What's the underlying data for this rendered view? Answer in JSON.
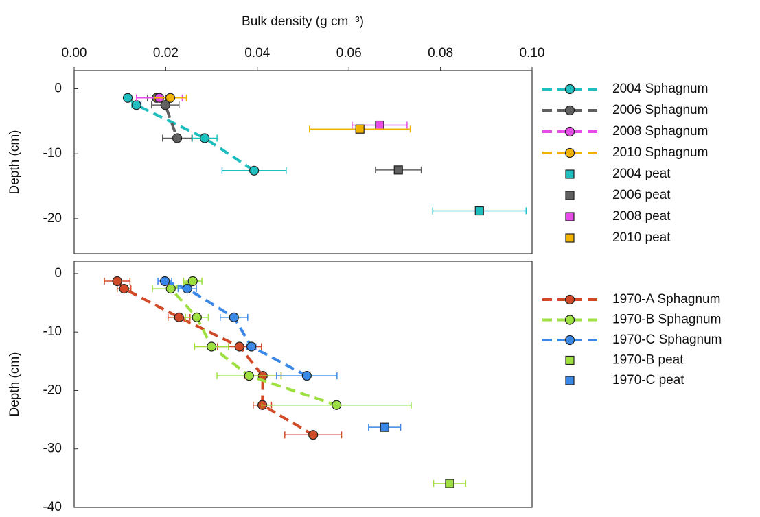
{
  "chart_data": [
    {
      "type": "scatter",
      "xlabel": "Bulk density (g cm⁻³)",
      "ylabel": "Depth (cm)",
      "xlim": [
        0,
        0.1
      ],
      "xticks": [
        {
          "value": 0,
          "label": "0.00"
        },
        {
          "value": 0.02,
          "label": "0.02"
        },
        {
          "value": 0.04,
          "label": "0.04"
        },
        {
          "value": 0.06,
          "label": "0.06"
        },
        {
          "value": 0.08,
          "label": "0.08"
        },
        {
          "value": 0.1,
          "label": "0.10"
        }
      ],
      "ylim": [
        -25.4,
        2.8
      ],
      "yticks": [
        0,
        -10,
        -20
      ],
      "series": [
        {
          "name": "2004 Sphagnum",
          "color": "#1fbfbf",
          "marker": "circle",
          "line": "dashed",
          "x": [
            0.0117,
            0.0136,
            0.0285,
            0.0393
          ],
          "y": [
            -1.4,
            -2.5,
            -7.6,
            -12.6
          ],
          "xerr": [
            0.0008,
            0.001,
            0.0027,
            0.007
          ]
        },
        {
          "name": "2006 Sphagnum",
          "color": "#606060",
          "marker": "circle",
          "line": "dashed",
          "x": [
            0.018,
            0.0199,
            0.0225
          ],
          "y": [
            -1.4,
            -2.5,
            -7.6
          ],
          "xerr": [
            0.002,
            0.003,
            0.0032
          ]
        },
        {
          "name": "2008 Sphagnum",
          "color": "#e64ce6",
          "marker": "circle",
          "line": "dashed",
          "x": [
            0.0186
          ],
          "y": [
            -1.4
          ],
          "xerr": [
            0.005
          ]
        },
        {
          "name": "2010 Sphagnum",
          "color": "#f0b400",
          "marker": "circle",
          "line": "dashed",
          "x": [
            0.021
          ],
          "y": [
            -1.4
          ],
          "xerr": [
            0.0035
          ]
        },
        {
          "name": "2004 peat",
          "color": "#1fbfbf",
          "marker": "square",
          "x": [
            0.0885
          ],
          "y": [
            -18.8
          ],
          "xerr": [
            0.0102
          ]
        },
        {
          "name": "2006 peat",
          "color": "#606060",
          "marker": "square",
          "x": [
            0.0708
          ],
          "y": [
            -12.5
          ],
          "xerr": [
            0.005
          ]
        },
        {
          "name": "2008 peat",
          "color": "#e64ce6",
          "marker": "square",
          "x": [
            0.0667
          ],
          "y": [
            -5.6
          ],
          "xerr": [
            0.006
          ]
        },
        {
          "name": "2010 peat",
          "color": "#f0b400",
          "marker": "square",
          "x": [
            0.0624
          ],
          "y": [
            -6.2
          ],
          "xerr": [
            0.011
          ]
        }
      ]
    },
    {
      "type": "scatter",
      "ylabel": "Depth (cm)",
      "ylim": [
        -40,
        2.1
      ],
      "yticks": [
        0,
        -10,
        -20,
        -30,
        -40
      ],
      "series": [
        {
          "name": "1970-A Sphagnum",
          "color": "#d04a28",
          "marker": "circle",
          "line": "dashed",
          "x": [
            0.0094,
            0.0109,
            0.0229,
            0.0361,
            0.0412,
            0.0411,
            0.0522
          ],
          "y": [
            -1.3,
            -2.6,
            -7.5,
            -12.5,
            -17.5,
            -22.5,
            -27.6
          ],
          "xerr": [
            0.0028,
            0.0015,
            0.0024,
            0.0048,
            0.004,
            0.002,
            0.0062
          ]
        },
        {
          "name": "1970-B Sphagnum",
          "color": "#9ee040",
          "marker": "circle",
          "line": "dashed",
          "x": [
            0.0259,
            0.0211,
            0.0268,
            0.03,
            0.0382,
            0.0573
          ],
          "y": [
            -1.3,
            -2.6,
            -7.5,
            -12.5,
            -17.5,
            -22.5
          ],
          "xerr": [
            0.002,
            0.004,
            0.0025,
            0.0037,
            0.007,
            0.0163
          ]
        },
        {
          "name": "1970-C Sphagnum",
          "color": "#3a88e8",
          "marker": "circle",
          "line": "dashed",
          "x": [
            0.0198,
            0.0247,
            0.0349,
            0.0387,
            0.0508
          ],
          "y": [
            -1.3,
            -2.6,
            -7.5,
            -12.5,
            -17.5
          ],
          "xerr": [
            0.0015,
            0.002,
            0.003,
            0.001,
            0.0066
          ]
        },
        {
          "name": "1970-B peat",
          "color": "#9ee040",
          "marker": "square",
          "x": [
            0.082
          ],
          "y": [
            -35.9
          ],
          "xerr": [
            0.0035
          ]
        },
        {
          "name": "1970-C peat",
          "color": "#3a88e8",
          "marker": "square",
          "x": [
            0.0678
          ],
          "y": [
            -26.3
          ],
          "xerr": [
            0.0035
          ]
        }
      ]
    }
  ]
}
